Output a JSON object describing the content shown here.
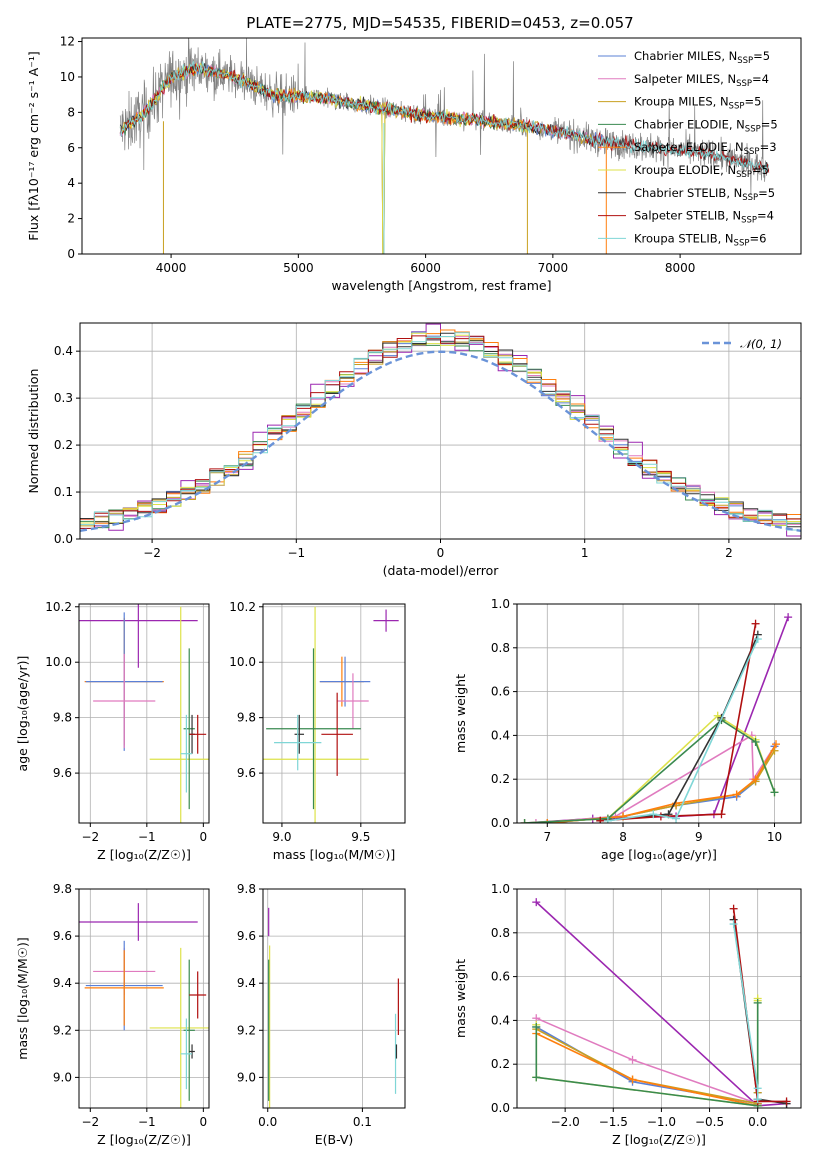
{
  "figure_title": "PLATE=2775, MJD=54535, FIBERID=0453, z=0.057",
  "colors": {
    "Chabrier MILES": "#5b80d6",
    "Salpeter MILES": "#e07bbf",
    "Kroupa MILES": "#c8a020",
    "Chabrier ELODIE": "#3a8a50",
    "Salpeter ELODIE": "#ff7f0e",
    "Kroupa ELODIE": "#dde24a",
    "Chabrier STELIB": "#333333",
    "Salpeter STELIB": "#b01010",
    "Kroupa STELIB": "#7fd6d6",
    "Violet": "#9b27b0",
    "observed": "#808080",
    "normal": "#6a93d8"
  },
  "chart_data": [
    {
      "id": "spectrum",
      "type": "line",
      "xlabel": "wavelength [Angstrom, rest frame]",
      "ylabel": "Flux [fλ10⁻¹⁷ erg cm⁻² s⁻¹ A⁻¹]",
      "xlim": [
        3300,
        8950
      ],
      "ylim": [
        0,
        12.2
      ],
      "xticks": [
        "4000",
        "5000",
        "6000",
        "7000",
        "8000"
      ],
      "yticks": [
        "0",
        "2",
        "4",
        "6",
        "8",
        "10",
        "12"
      ],
      "legend_loc": "right",
      "legend": [
        {
          "name": "Chabrier MILES, NSSP=5",
          "base": "Chabrier MILES, N",
          "sub": "SSP",
          "tail": "=5"
        },
        {
          "name": "Salpeter MILES, NSSP=4",
          "base": "Salpeter MILES, N",
          "sub": "SSP",
          "tail": "=4"
        },
        {
          "name": "Kroupa MILES, NSSP=5",
          "base": "Kroupa MILES, N",
          "sub": "SSP",
          "tail": "=5"
        },
        {
          "name": "Chabrier ELODIE, NSSP=5",
          "base": "Chabrier ELODIE, N",
          "sub": "SSP",
          "tail": "=5"
        },
        {
          "name": "Salpeter ELODIE, NSSP=3",
          "base": "Salpeter ELODIE, N",
          "sub": "SSP",
          "tail": "=3"
        },
        {
          "name": "Kroupa ELODIE, NSSP=5",
          "base": "Kroupa ELODIE, N",
          "sub": "SSP",
          "tail": "=5"
        },
        {
          "name": "Chabrier STELIB, NSSP=5",
          "base": "Chabrier STELIB, N",
          "sub": "SSP",
          "tail": "=5"
        },
        {
          "name": "Salpeter STELIB, NSSP=4",
          "base": "Salpeter STELIB, N",
          "sub": "SSP",
          "tail": "=4"
        },
        {
          "name": "Kroupa STELIB, NSSP=6",
          "base": "Kroupa STELIB, N",
          "sub": "SSP",
          "tail": "=6"
        }
      ],
      "continuum_knots": [
        [
          3600,
          7.0
        ],
        [
          3800,
          8.0
        ],
        [
          4000,
          10.0
        ],
        [
          4200,
          10.5
        ],
        [
          4500,
          10.0
        ],
        [
          4800,
          9.0
        ],
        [
          5200,
          8.8
        ],
        [
          5600,
          8.3
        ],
        [
          6000,
          7.8
        ],
        [
          6500,
          7.5
        ],
        [
          7000,
          7.0
        ],
        [
          7400,
          6.3
        ],
        [
          7800,
          6.0
        ],
        [
          8200,
          5.7
        ],
        [
          8700,
          4.8
        ]
      ]
    },
    {
      "id": "residual_histogram",
      "type": "line",
      "xlabel": "(data-model)/error",
      "ylabel": "Normed distribution",
      "xlim": [
        -2.5,
        2.5
      ],
      "ylim": [
        0,
        0.46
      ],
      "xticks": [
        "−2",
        "−1",
        "0",
        "1",
        "2"
      ],
      "yticks": [
        "0.0",
        "0.1",
        "0.2",
        "0.3",
        "0.4"
      ],
      "legend_loc": "upper right",
      "legend": [
        "𝒩(0, 1)"
      ],
      "bin_width": 0.1
    },
    {
      "id": "age_vs_Z",
      "type": "scatter",
      "xlabel": "Z [log₁₀(Z/Z☉)]",
      "ylabel": "age  [log₁₀(age/yr)]",
      "xlim": [
        -2.2,
        0.1
      ],
      "ylim": [
        9.42,
        10.21
      ],
      "xticks": [
        "−2",
        "−1",
        "0"
      ],
      "yticks": [
        "9.6",
        "9.8",
        "10.0",
        "10.2"
      ],
      "points": [
        {
          "series": "Violet",
          "x": -1.15,
          "xerr": 1.05,
          "y": 10.15,
          "yerr": 0.17
        },
        {
          "series": "Salpeter ELODIE",
          "x": -1.4,
          "xerr": 0.7,
          "y": 9.93,
          "yerr": 0.23
        },
        {
          "series": "Chabrier MILES",
          "x": -1.4,
          "xerr": 0.68,
          "y": 9.93,
          "yerr": 0.25
        },
        {
          "series": "Salpeter MILES",
          "x": -1.4,
          "xerr": 0.55,
          "y": 9.86,
          "yerr": 0.17
        },
        {
          "series": "Kroupa ELODIE",
          "x": -0.4,
          "xerr": 0.55,
          "y": 9.65,
          "yerr": 0.55
        },
        {
          "series": "Chabrier ELODIE",
          "x": -0.25,
          "xerr": 0.1,
          "y": 9.76,
          "yerr": 0.29
        },
        {
          "series": "Chabrier STELIB",
          "x": -0.2,
          "xerr": 0.05,
          "y": 9.74,
          "yerr": 0.07
        },
        {
          "series": "Salpeter STELIB",
          "x": -0.1,
          "xerr": 0.15,
          "y": 9.74,
          "yerr": 0.07
        },
        {
          "series": "Kroupa STELIB",
          "x": -0.3,
          "xerr": 0.1,
          "y": 9.67,
          "yerr": 0.14
        }
      ]
    },
    {
      "id": "age_vs_mass",
      "type": "scatter",
      "xlabel": "mass [log₁₀(M/M☉)]",
      "ylabel": "",
      "xlim": [
        8.88,
        9.78
      ],
      "ylim": [
        9.42,
        10.21
      ],
      "xticks": [
        "9.0",
        "9.5"
      ],
      "yticks": [
        "9.6",
        "9.8",
        "10.0",
        "10.2"
      ],
      "points": [
        {
          "series": "Violet",
          "x": 9.66,
          "xerr": 0.08,
          "y": 10.15,
          "yerr": 0.04
        },
        {
          "series": "Salpeter ELODIE",
          "x": 9.38,
          "xerr": 0.14,
          "y": 9.93,
          "yerr": 0.09
        },
        {
          "series": "Chabrier MILES",
          "x": 9.4,
          "xerr": 0.16,
          "y": 9.93,
          "yerr": 0.09
        },
        {
          "series": "Salpeter MILES",
          "x": 9.45,
          "xerr": 0.1,
          "y": 9.86,
          "yerr": 0.1
        },
        {
          "series": "Kroupa ELODIE",
          "x": 9.21,
          "xerr": 0.34,
          "y": 9.65,
          "yerr": 0.55
        },
        {
          "series": "Chabrier ELODIE",
          "x": 9.2,
          "xerr": 0.3,
          "y": 9.76,
          "yerr": 0.29
        },
        {
          "series": "Chabrier STELIB",
          "x": 9.11,
          "xerr": 0.03,
          "y": 9.74,
          "yerr": 0.07
        },
        {
          "series": "Salpeter STELIB",
          "x": 9.35,
          "xerr": 0.1,
          "y": 9.74,
          "yerr": 0.15
        },
        {
          "series": "Kroupa STELIB",
          "x": 9.1,
          "xerr": 0.15,
          "y": 9.71,
          "yerr": 0.1
        }
      ]
    },
    {
      "id": "mass_weight_vs_age",
      "type": "line",
      "xlabel": "age  [log₁₀(age/yr)]",
      "ylabel": "mass weight",
      "xlim": [
        6.6,
        10.35
      ],
      "ylim": [
        0,
        1
      ],
      "xticks": [
        "7",
        "8",
        "9",
        "10"
      ],
      "yticks": [
        "0.0",
        "0.2",
        "0.4",
        "0.6",
        "0.8",
        "1.0"
      ],
      "series": [
        {
          "name": "Violet",
          "x": [
            6.7,
            7.6,
            8.7,
            9.2,
            10.18
          ],
          "y": [
            0.0,
            0.02,
            0.03,
            0.04,
            0.94
          ]
        },
        {
          "name": "Salpeter MILES",
          "x": [
            6.85,
            7.9,
            9.7,
            9.72,
            10.0
          ],
          "y": [
            0.0,
            0.03,
            0.4,
            0.2,
            0.35
          ]
        },
        {
          "name": "Chabrier MILES",
          "x": [
            7.0,
            8.0,
            8.7,
            9.5,
            9.75,
            10.0
          ],
          "y": [
            0.0,
            0.03,
            0.08,
            0.12,
            0.19,
            0.35
          ]
        },
        {
          "name": "Kroupa MILES",
          "x": [
            7.0,
            8.0,
            8.7,
            9.5,
            9.75,
            10.0
          ],
          "y": [
            0.0,
            0.03,
            0.08,
            0.13,
            0.19,
            0.33
          ]
        },
        {
          "name": "Salpeter ELODIE",
          "x": [
            7.0,
            8.0,
            8.7,
            9.5,
            9.75,
            10.02
          ],
          "y": [
            0.0,
            0.03,
            0.09,
            0.13,
            0.2,
            0.36
          ]
        },
        {
          "name": "Kroupa ELODIE",
          "x": [
            6.7,
            7.8,
            9.25,
            9.75,
            10.0
          ],
          "y": [
            0.0,
            0.02,
            0.49,
            0.38,
            0.14
          ]
        },
        {
          "name": "Chabrier ELODIE",
          "x": [
            6.7,
            7.8,
            9.3,
            9.75,
            10.0
          ],
          "y": [
            0.0,
            0.02,
            0.47,
            0.37,
            0.14
          ]
        },
        {
          "name": "Chabrier STELIB",
          "x": [
            7.7,
            8.6,
            9.3,
            9.78
          ],
          "y": [
            0.01,
            0.04,
            0.48,
            0.86
          ]
        },
        {
          "name": "Salpeter STELIB",
          "x": [
            7.7,
            8.5,
            9.3,
            9.75
          ],
          "y": [
            0.01,
            0.03,
            0.04,
            0.91
          ]
        },
        {
          "name": "Kroupa STELIB",
          "x": [
            7.8,
            8.4,
            8.7,
            9.78
          ],
          "y": [
            0.01,
            0.04,
            0.02,
            0.84
          ]
        }
      ]
    },
    {
      "id": "mass_vs_Z",
      "type": "scatter",
      "xlabel": "Z [log₁₀(Z/Z☉)]",
      "ylabel": "mass [log₁₀(M/M☉)]",
      "xlim": [
        -2.2,
        0.1
      ],
      "ylim": [
        8.87,
        9.8
      ],
      "xticks": [
        "−2",
        "−1",
        "0"
      ],
      "yticks": [
        "9.0",
        "9.2",
        "9.4",
        "9.6",
        "9.8"
      ],
      "points": [
        {
          "series": "Violet",
          "x": -1.15,
          "xerr": 1.05,
          "y": 9.66,
          "yerr": 0.08
        },
        {
          "series": "Salpeter MILES",
          "x": -1.4,
          "xerr": 0.55,
          "y": 9.45,
          "yerr": 0.1
        },
        {
          "series": "Chabrier MILES",
          "x": -1.4,
          "xerr": 0.68,
          "y": 9.39,
          "yerr": 0.19
        },
        {
          "series": "Salpeter ELODIE",
          "x": -1.4,
          "xerr": 0.7,
          "y": 9.38,
          "yerr": 0.16
        },
        {
          "series": "Kroupa ELODIE",
          "x": -0.4,
          "xerr": 0.55,
          "y": 9.21,
          "yerr": 0.34
        },
        {
          "series": "Chabrier ELODIE",
          "x": -0.25,
          "xerr": 0.1,
          "y": 9.2,
          "yerr": 0.3
        },
        {
          "series": "Salpeter STELIB",
          "x": -0.1,
          "xerr": 0.15,
          "y": 9.35,
          "yerr": 0.1
        },
        {
          "series": "Chabrier STELIB",
          "x": -0.2,
          "xerr": 0.05,
          "y": 9.11,
          "yerr": 0.03
        },
        {
          "series": "Kroupa STELIB",
          "x": -0.3,
          "xerr": 0.1,
          "y": 9.1,
          "yerr": 0.15
        }
      ]
    },
    {
      "id": "mass_vs_EBV",
      "type": "scatter",
      "xlabel": "E(B-V)",
      "ylabel": "",
      "xlim": [
        -0.005,
        0.145
      ],
      "ylim": [
        8.87,
        9.8
      ],
      "xticks": [
        "0.0",
        "0.1"
      ],
      "yticks": [
        "9.0",
        "9.2",
        "9.4",
        "9.6",
        "9.8"
      ],
      "points": [
        {
          "series": "Violet",
          "x": 0.001,
          "y": 9.66,
          "yerr": 0.06
        },
        {
          "series": "Kroupa ELODIE",
          "x": 0.002,
          "y": 9.21,
          "yerr": 0.35
        },
        {
          "series": "Chabrier ELODIE",
          "x": 0.001,
          "y": 9.2,
          "yerr": 0.3
        },
        {
          "series": "Salpeter STELIB",
          "x": 0.138,
          "y": 9.3,
          "yerr": 0.12
        },
        {
          "series": "Kroupa STELIB",
          "x": 0.135,
          "y": 9.1,
          "yerr": 0.17
        },
        {
          "series": "Chabrier STELIB",
          "x": 0.136,
          "y": 9.11,
          "yerr": 0.03
        }
      ]
    },
    {
      "id": "mass_weight_vs_Z",
      "type": "line",
      "xlabel": "Z [log₁₀(Z/Z☉)]",
      "ylabel": "mass weight",
      "xlim": [
        -2.5,
        0.45
      ],
      "ylim": [
        0,
        1
      ],
      "xticks": [
        "−2.0",
        "−1.5",
        "−1.0",
        "−0.5",
        "0.0"
      ],
      "yticks": [
        "0.0",
        "0.2",
        "0.4",
        "0.6",
        "0.8",
        "1.0"
      ],
      "series": [
        {
          "name": "Violet",
          "x": [
            -2.3,
            0.0,
            0.3
          ],
          "y": [
            0.94,
            0.01,
            0.02
          ]
        },
        {
          "name": "Salpeter MILES",
          "x": [
            -2.3,
            -1.3,
            0.0,
            0.0
          ],
          "y": [
            0.41,
            0.22,
            0.02,
            0.04
          ]
        },
        {
          "name": "Chabrier MILES",
          "x": [
            -2.3,
            -1.3,
            0.0,
            0.0
          ],
          "y": [
            0.37,
            0.12,
            0.02,
            0.07
          ]
        },
        {
          "name": "Kroupa MILES",
          "x": [
            -2.3,
            -1.3,
            0.0,
            0.0
          ],
          "y": [
            0.36,
            0.13,
            0.02,
            0.07
          ]
        },
        {
          "name": "Salpeter ELODIE",
          "x": [
            -2.3,
            -1.3,
            0.0
          ],
          "y": [
            0.34,
            0.13,
            0.01
          ]
        },
        {
          "name": "Kroupa ELODIE",
          "x": [
            -2.3,
            -2.3,
            0.0,
            0.0,
            0.0
          ],
          "y": [
            0.38,
            0.14,
            0.01,
            0.49,
            0.5
          ]
        },
        {
          "name": "Chabrier ELODIE",
          "x": [
            -2.3,
            -2.3,
            0.0,
            0.0
          ],
          "y": [
            0.37,
            0.14,
            0.01,
            0.48
          ]
        },
        {
          "name": "Chabrier STELIB",
          "x": [
            -0.25,
            0.0,
            0.3
          ],
          "y": [
            0.86,
            0.04,
            0.02
          ]
        },
        {
          "name": "Salpeter STELIB",
          "x": [
            -0.25,
            0.0,
            0.3
          ],
          "y": [
            0.91,
            0.03,
            0.03
          ]
        },
        {
          "name": "Kroupa STELIB",
          "x": [
            -0.25,
            0.0,
            0.0
          ],
          "y": [
            0.84,
            0.09,
            0.04
          ]
        }
      ]
    }
  ]
}
